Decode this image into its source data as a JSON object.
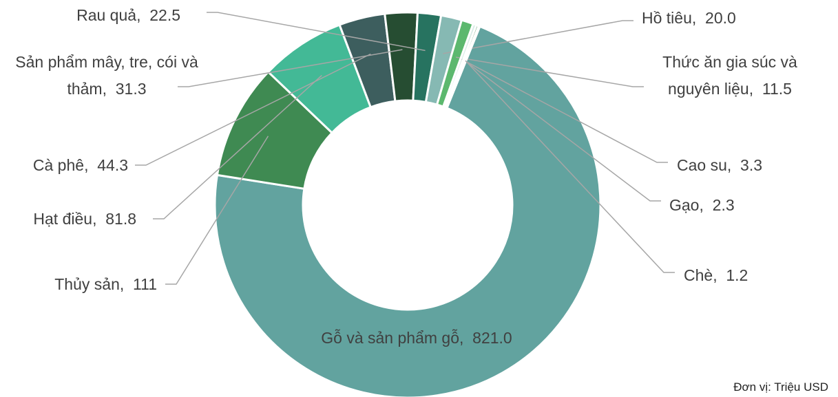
{
  "chart_data": {
    "type": "donut",
    "categories": [
      "Gỗ và sản phẩm gỗ",
      "Thủy sản",
      "Hạt điều",
      "Cà phê",
      "Sản phẩm mây, tre, cói và thảm",
      "Rau quả",
      "Hồ tiêu",
      "Thức ăn gia súc và nguyên liệu",
      "Cao su",
      "Gạo",
      "Chè"
    ],
    "values": [
      821.0,
      111,
      81.8,
      44.3,
      31.3,
      22.5,
      20.0,
      11.5,
      3.3,
      2.3,
      1.2
    ],
    "value_labels": [
      "821.0",
      "111",
      "81.8",
      "44.3",
      "31.3",
      "22.5",
      "20.0",
      "11.5",
      "3.3",
      "2.3",
      "1.2"
    ],
    "colors": [
      "#62a39f",
      "#3f8a52",
      "#43b996",
      "#3d5e5e",
      "#264d32",
      "#277360",
      "#86b9b3",
      "#5cb86e",
      "#d9ece6",
      "#3f8a52",
      "#43b996"
    ],
    "start_angle": 22,
    "note": "Đơn vị: Triệu USD"
  }
}
